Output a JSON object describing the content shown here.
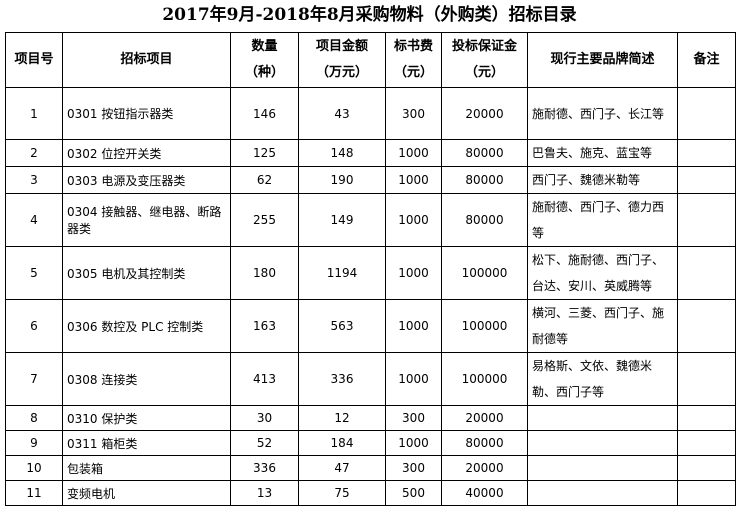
{
  "title": "2017年9月-2018年8月采购物料（外购类）招标目录",
  "columns": [
    "项目号",
    "招标项目",
    "数量\n（种）",
    "项目金额\n（万元）",
    "标书费\n（元）",
    "投标保证金\n（元）",
    "现行主要品牌简述",
    "备注"
  ],
  "rows": [
    {
      "no": "1",
      "item": "0301 按钮指示器类",
      "qty": "146",
      "amount": "43",
      "fee": "300",
      "deposit": "20000",
      "brands": "施耐德、西门子、长江等",
      "note": "",
      "tall": true
    },
    {
      "no": "2",
      "item": "0302 位控开关类",
      "qty": "125",
      "amount": "148",
      "fee": "1000",
      "deposit": "80000",
      "brands": "巴鲁夫、施克、蓝宝等",
      "note": "",
      "tall": false
    },
    {
      "no": "3",
      "item": "0303 电源及变压器类",
      "qty": "62",
      "amount": "190",
      "fee": "1000",
      "deposit": "80000",
      "brands": "西门子、魏德米勒等",
      "note": "",
      "tall": false
    },
    {
      "no": "4",
      "item": "0304 接触器、继电器、断路器类",
      "qty": "255",
      "amount": "149",
      "fee": "1000",
      "deposit": "80000",
      "brands": "施耐德、西门子、德力西等",
      "note": "",
      "tall": true
    },
    {
      "no": "5",
      "item": "0305 电机及其控制类",
      "qty": "180",
      "amount": "1194",
      "fee": "1000",
      "deposit": "100000",
      "brands": "松下、施耐德、西门子、台达、安川、英威腾等",
      "note": "",
      "tall": true
    },
    {
      "no": "6",
      "item": "0306 数控及 PLC 控制类",
      "qty": "163",
      "amount": "563",
      "fee": "1000",
      "deposit": "100000",
      "brands": "横河、三菱、西门子、施耐德等",
      "note": "",
      "tall": true
    },
    {
      "no": "7",
      "item": "0308 连接类",
      "qty": "413",
      "amount": "336",
      "fee": "1000",
      "deposit": "100000",
      "brands": "易格斯、文依、魏德米勒、西门子等",
      "note": "",
      "tall": true
    },
    {
      "no": "8",
      "item": "0310 保护类",
      "qty": "30",
      "amount": "12",
      "fee": "300",
      "deposit": "20000",
      "brands": "",
      "note": "",
      "tall": false
    },
    {
      "no": "9",
      "item": "0311 箱柜类",
      "qty": "52",
      "amount": "184",
      "fee": "1000",
      "deposit": "80000",
      "brands": "",
      "note": "",
      "tall": false
    },
    {
      "no": "10",
      "item": "包装箱",
      "qty": "336",
      "amount": "47",
      "fee": "300",
      "deposit": "20000",
      "brands": "",
      "note": "",
      "tall": false
    },
    {
      "no": "11",
      "item": "变频电机",
      "qty": "13",
      "amount": "75",
      "fee": "500",
      "deposit": "40000",
      "brands": "",
      "note": "",
      "tall": false
    }
  ]
}
